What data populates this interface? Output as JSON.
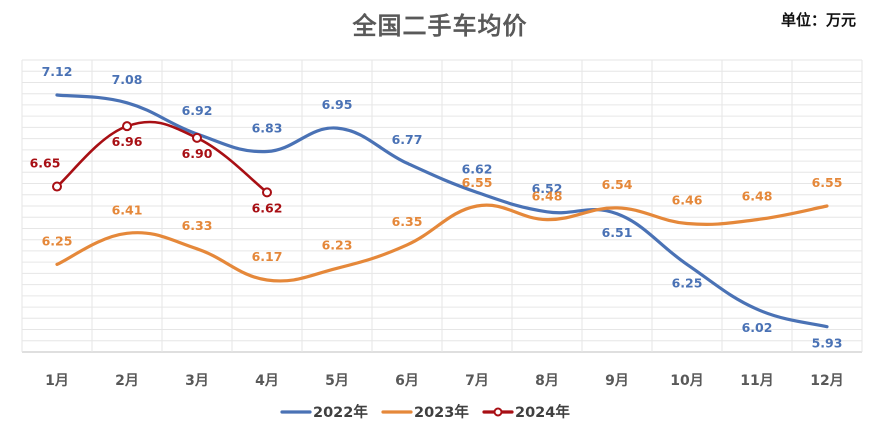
{
  "chart_data": {
    "type": "line",
    "title": "全国二手车均价",
    "unit": "单位：万元",
    "categories": [
      "1月",
      "2月",
      "3月",
      "4月",
      "5月",
      "6月",
      "7月",
      "8月",
      "9月",
      "10月",
      "11月",
      "12月"
    ],
    "ylim": [
      5.8,
      7.3
    ],
    "grid": true,
    "legend_position": "bottom",
    "series": [
      {
        "name": "2022年",
        "color": "#4a72b5",
        "values": [
          7.12,
          7.08,
          6.92,
          6.83,
          6.95,
          6.77,
          6.62,
          6.52,
          6.51,
          6.25,
          6.02,
          5.93
        ],
        "markers": false
      },
      {
        "name": "2023年",
        "color": "#e5883a",
        "values": [
          6.25,
          6.41,
          6.33,
          6.17,
          6.23,
          6.35,
          6.55,
          6.48,
          6.54,
          6.46,
          6.48,
          6.55
        ],
        "markers": false
      },
      {
        "name": "2024年",
        "color": "#a80f14",
        "values": [
          6.65,
          6.96,
          6.9,
          6.62,
          null,
          null,
          null,
          null,
          null,
          null,
          null,
          null
        ],
        "markers": true
      }
    ]
  }
}
